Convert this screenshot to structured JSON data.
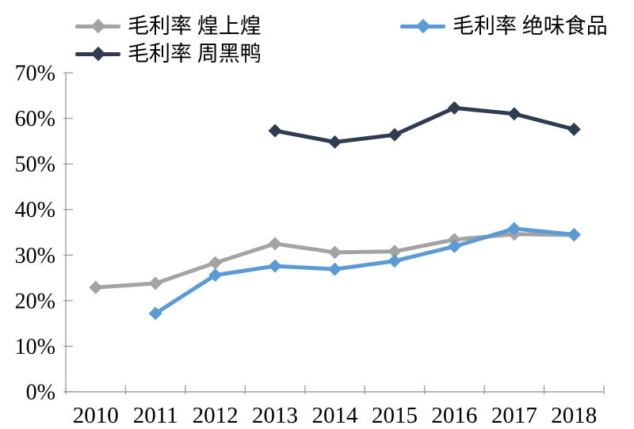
{
  "chart_data": {
    "type": "line",
    "title": "",
    "categories": [
      "2010",
      "2011",
      "2012",
      "2013",
      "2014",
      "2015",
      "2016",
      "2017",
      "2018"
    ],
    "series": [
      {
        "name": "毛利率 煌上煌",
        "color": "#a3a3a3",
        "values": [
          22.9,
          23.8,
          28.3,
          32.5,
          30.6,
          30.8,
          33.4,
          34.6,
          34.4
        ]
      },
      {
        "name": "毛利率 周黑鸭",
        "color": "#2f3b50",
        "values": [
          null,
          null,
          null,
          57.3,
          54.8,
          56.4,
          62.3,
          61.0,
          57.6
        ]
      },
      {
        "name": "毛利率 绝味食品",
        "color": "#5b9bd5",
        "values": [
          null,
          17.2,
          25.6,
          27.6,
          26.9,
          28.7,
          31.9,
          35.8,
          34.5
        ]
      }
    ],
    "xlabel": "",
    "ylabel": "",
    "ylim": [
      0,
      70
    ],
    "y_tick_labels": [
      "0%",
      "10%",
      "20%",
      "30%",
      "40%",
      "50%",
      "60%",
      "70%"
    ],
    "grid": false,
    "legend_position": "top",
    "marker": "diamond",
    "axis_color": "#a0a0a0",
    "text_color": "#000000"
  }
}
